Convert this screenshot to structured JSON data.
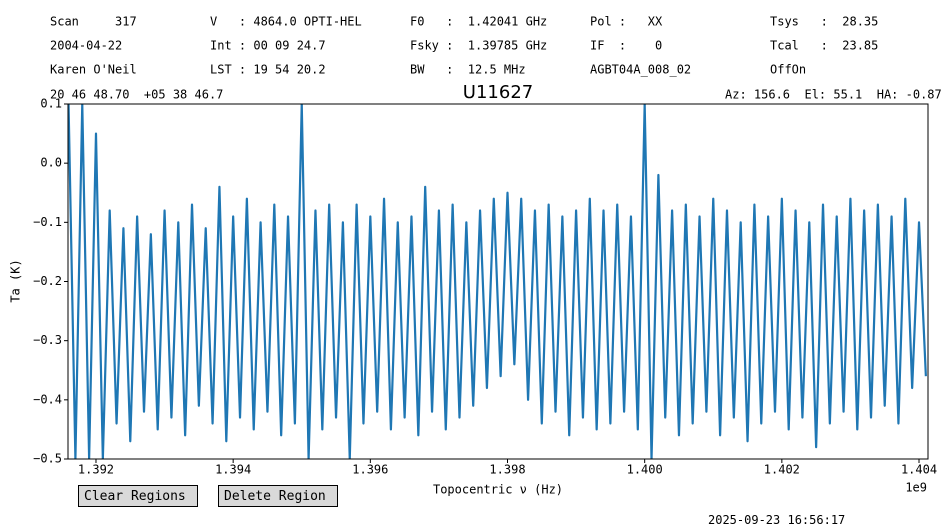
{
  "header": {
    "columns": [
      [
        "Scan     317",
        "2004-04-22",
        "Karen O'Neil"
      ],
      [
        "V   : 4864.0 OPTI-HEL",
        "Int : 00 09 24.7",
        "LST : 19 54 20.2"
      ],
      [
        "F0   :  1.42041 GHz",
        "Fsky :  1.39785 GHz",
        "BW   :  12.5 MHz"
      ],
      [
        "Pol :   XX",
        "IF  :    0",
        "AGBT04A_008_02"
      ],
      [
        "Tsys   :  28.35",
        "Tcal   :  23.85",
        "OffOn"
      ]
    ],
    "coordinates": "20 46 48.70  +05 38 46.7",
    "pointing": "Az: 156.6  El: 55.1  HA: -0.87"
  },
  "chart_data": {
    "type": "line",
    "title": "U11627",
    "x_label": "Topocentric ν (Hz)",
    "y_label": "Ta (K)",
    "x_offset_label": "1e9",
    "xlim": [
      1391592000,
      1404131000
    ],
    "ylim": [
      -0.5,
      0.1
    ],
    "xticks": [
      {
        "value": 1392000000,
        "label": "1.392"
      },
      {
        "value": 1394000000,
        "label": "1.394"
      },
      {
        "value": 1396000000,
        "label": "1.396"
      },
      {
        "value": 1398000000,
        "label": "1.398"
      },
      {
        "value": 1400000000,
        "label": "1.400"
      },
      {
        "value": 1402000000,
        "label": "1.402"
      },
      {
        "value": 1404000000,
        "label": "1.404"
      }
    ],
    "yticks": [
      {
        "value": -0.5,
        "label": "−0.5"
      },
      {
        "value": -0.4,
        "label": "−0.4"
      },
      {
        "value": -0.3,
        "label": "−0.3"
      },
      {
        "value": -0.2,
        "label": "−0.2"
      },
      {
        "value": -0.1,
        "label": "−0.1"
      },
      {
        "value": 0,
        "label": "0.0"
      },
      0.1
    ],
    "grid": false,
    "x": [
      1391600000,
      1391700000,
      1391800000,
      1391900000,
      1392000000,
      1392100000,
      1392200000,
      1392300000,
      1392400000,
      1392500000,
      1392600000,
      1392700000,
      1392800000,
      1392900000,
      1393000000,
      1393100000,
      1393200000,
      1393300000,
      1393400000,
      1393500000,
      1393600000,
      1393700000,
      1393800000,
      1393900000,
      1394000000,
      1394100000,
      1394200000,
      1394300000,
      1394400000,
      1394500000,
      1394600000,
      1394700000,
      1394800000,
      1394900000,
      1395000000,
      1395100000,
      1395200000,
      1395300000,
      1395400000,
      1395500000,
      1395600000,
      1395700000,
      1395800000,
      1395900000,
      1396000000,
      1396100000,
      1396200000,
      1396300000,
      1396400000,
      1396500000,
      1396600000,
      1396700000,
      1396800000,
      1396900000,
      1397000000,
      1397100000,
      1397200000,
      1397300000,
      1397400000,
      1397500000,
      1397600000,
      1397700000,
      1397800000,
      1397900000,
      1398000000,
      1398100000,
      1398200000,
      1398300000,
      1398400000,
      1398500000,
      1398600000,
      1398700000,
      1398800000,
      1398900000,
      1399000000,
      1399100000,
      1399200000,
      1399300000,
      1399400000,
      1399500000,
      1399600000,
      1399700000,
      1399800000,
      1399900000,
      1400000000,
      1400100000,
      1400200000,
      1400300000,
      1400400000,
      1400500000,
      1400600000,
      1400700000,
      1400800000,
      1400900000,
      1401000000,
      1401100000,
      1401200000,
      1401300000,
      1401400000,
      1401500000,
      1401600000,
      1401700000,
      1401800000,
      1401900000,
      1402000000,
      1402100000,
      1402200000,
      1402300000,
      1402400000,
      1402500000,
      1402600000,
      1402700000,
      1402800000,
      1402900000,
      1403000000,
      1403100000,
      1403200000,
      1403300000,
      1403400000,
      1403500000,
      1403600000,
      1403700000,
      1403800000,
      1403900000,
      1404000000,
      1404100000
    ],
    "series": [
      {
        "color": "#1f77b4",
        "values": [
          0.1,
          -0.5,
          0.1,
          -0.5,
          0.05,
          -0.5,
          -0.08,
          -0.44,
          -0.11,
          -0.47,
          -0.09,
          -0.42,
          -0.12,
          -0.45,
          -0.08,
          -0.43,
          -0.1,
          -0.46,
          -0.07,
          -0.41,
          -0.11,
          -0.44,
          -0.04,
          -0.47,
          -0.09,
          -0.43,
          -0.06,
          -0.45,
          -0.1,
          -0.42,
          -0.07,
          -0.46,
          -0.09,
          -0.44,
          0.1,
          -0.5,
          -0.08,
          -0.45,
          -0.07,
          -0.43,
          -0.1,
          -0.5,
          -0.07,
          -0.44,
          -0.09,
          -0.42,
          -0.06,
          -0.45,
          -0.1,
          -0.43,
          -0.09,
          -0.46,
          -0.04,
          -0.42,
          -0.08,
          -0.45,
          -0.07,
          -0.43,
          -0.1,
          -0.41,
          -0.08,
          -0.38,
          -0.06,
          -0.36,
          -0.05,
          -0.34,
          -0.06,
          -0.4,
          -0.08,
          -0.44,
          -0.07,
          -0.42,
          -0.09,
          -0.46,
          -0.08,
          -0.43,
          -0.06,
          -0.45,
          -0.08,
          -0.44,
          -0.07,
          -0.42,
          -0.09,
          -0.45,
          0.1,
          -0.5,
          -0.02,
          -0.43,
          -0.08,
          -0.46,
          -0.07,
          -0.44,
          -0.09,
          -0.42,
          -0.06,
          -0.46,
          -0.08,
          -0.43,
          -0.1,
          -0.47,
          -0.07,
          -0.44,
          -0.09,
          -0.42,
          -0.06,
          -0.45,
          -0.08,
          -0.43,
          -0.1,
          -0.48,
          -0.07,
          -0.44,
          -0.09,
          -0.42,
          -0.06,
          -0.45,
          -0.08,
          -0.43,
          -0.07,
          -0.41,
          -0.09,
          -0.44,
          -0.06,
          -0.38,
          -0.1,
          -0.36
        ]
      }
    ]
  },
  "buttons": [
    "Clear Regions",
    "Delete Region"
  ],
  "timestamp": "2025-09-23 16:56:17"
}
